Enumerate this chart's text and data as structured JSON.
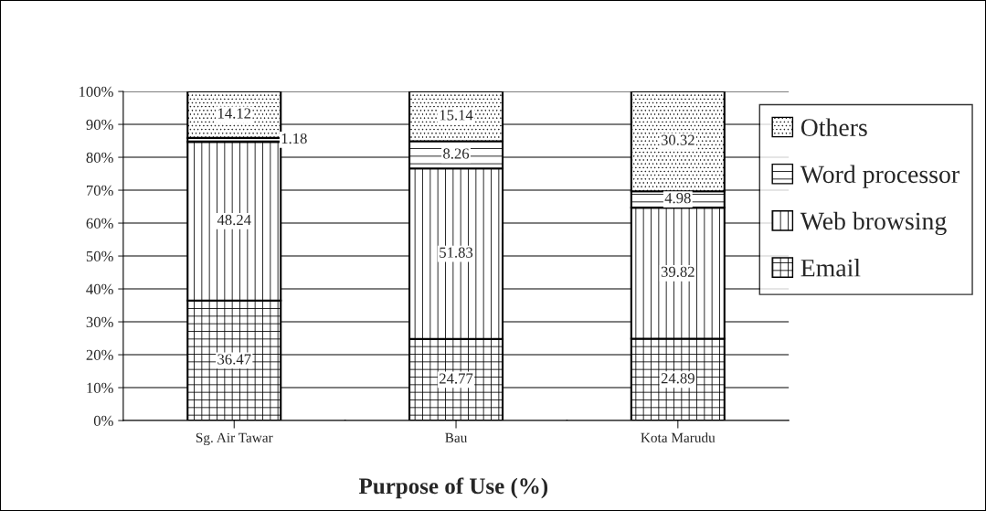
{
  "chart_data": {
    "type": "bar",
    "stacked": true,
    "title": "Purpose of Use (%)",
    "categories": [
      "Sg. Air Tawar",
      "Bau",
      "Kota Marudu"
    ],
    "series": [
      {
        "name": "Email",
        "color": "#000000",
        "values": [
          36.47,
          24.77,
          24.89
        ]
      },
      {
        "name": "Web browsing",
        "color": "#000000",
        "values": [
          48.24,
          51.83,
          39.82
        ]
      },
      {
        "name": "Word processor",
        "color": "#000000",
        "values": [
          1.18,
          8.26,
          4.98
        ]
      },
      {
        "name": "Others",
        "color": "#000000",
        "values": [
          14.12,
          15.14,
          30.32
        ]
      }
    ],
    "ylim": [
      0,
      100
    ],
    "yticks": [
      {
        "value": 0,
        "label": "0%"
      },
      {
        "value": 10,
        "label": "10%"
      },
      {
        "value": 20,
        "label": "20%"
      },
      {
        "value": 30,
        "label": "30%"
      },
      {
        "value": 40,
        "label": "40%"
      },
      {
        "value": 50,
        "label": "50%"
      },
      {
        "value": 60,
        "label": "60%"
      },
      {
        "value": 70,
        "label": "70%"
      },
      {
        "value": 80,
        "label": "80%"
      },
      {
        "value": 90,
        "label": "90%"
      },
      {
        "value": 100,
        "label": "100%"
      }
    ],
    "grid": "y",
    "legend": "right",
    "data_labels": true
  }
}
